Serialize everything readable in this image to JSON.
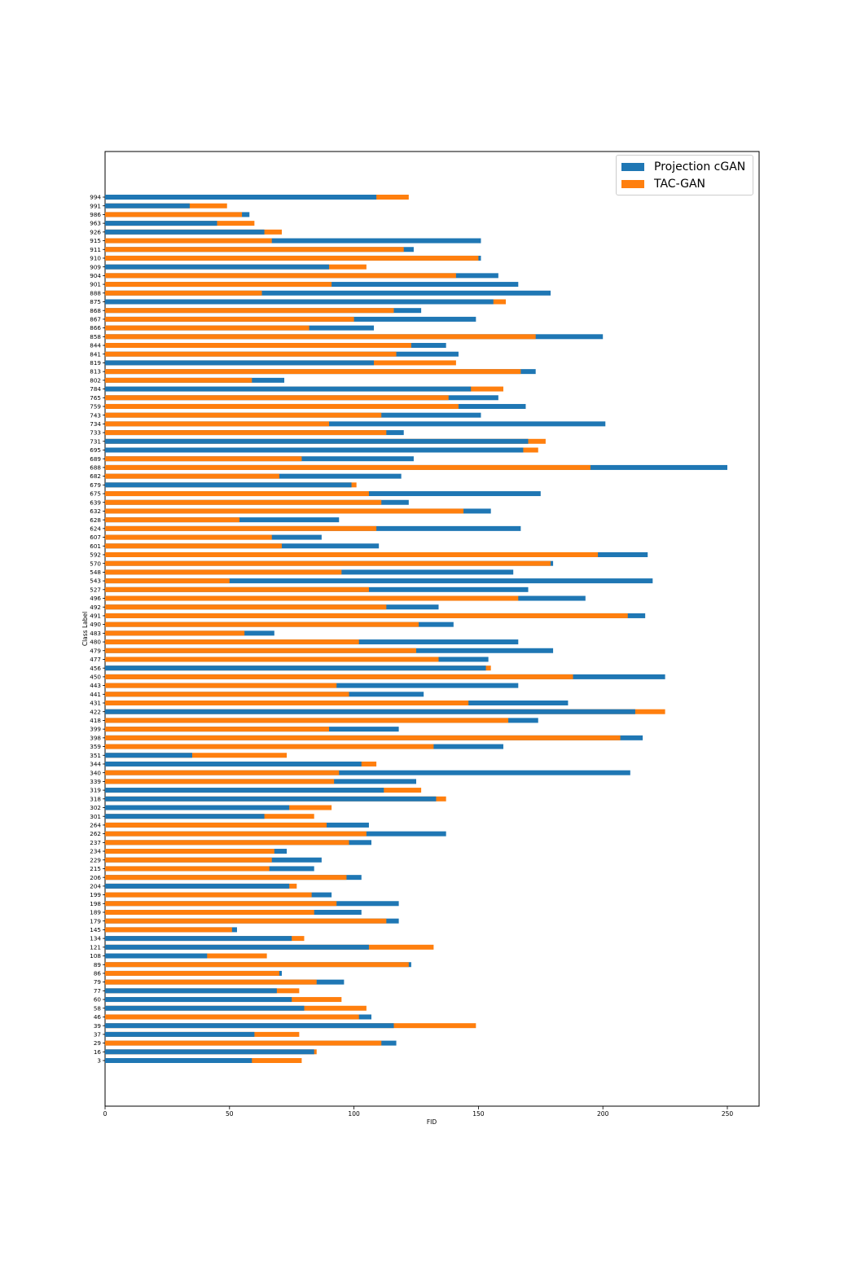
{
  "chart_data": {
    "type": "bar",
    "orientation": "horizontal",
    "bar_style": "overlapping (smaller value drawn on top)",
    "xlabel": "FID",
    "ylabel": "Class Label",
    "xlim": [
      0,
      262
    ],
    "xticks": [
      "0",
      "50",
      "100",
      "150",
      "200",
      "250"
    ],
    "grid": false,
    "legend_position": "top-right",
    "categories": [
      "3",
      "16",
      "29",
      "37",
      "39",
      "46",
      "58",
      "60",
      "77",
      "79",
      "86",
      "89",
      "108",
      "121",
      "134",
      "145",
      "179",
      "189",
      "198",
      "199",
      "204",
      "206",
      "215",
      "229",
      "234",
      "237",
      "262",
      "264",
      "301",
      "302",
      "318",
      "319",
      "339",
      "340",
      "344",
      "351",
      "359",
      "398",
      "399",
      "418",
      "422",
      "431",
      "441",
      "443",
      "450",
      "456",
      "477",
      "479",
      "480",
      "483",
      "490",
      "491",
      "492",
      "496",
      "527",
      "543",
      "548",
      "570",
      "592",
      "601",
      "607",
      "624",
      "628",
      "632",
      "639",
      "675",
      "679",
      "682",
      "688",
      "689",
      "695",
      "731",
      "733",
      "734",
      "743",
      "759",
      "765",
      "784",
      "802",
      "813",
      "819",
      "841",
      "844",
      "858",
      "866",
      "867",
      "868",
      "875",
      "888",
      "901",
      "904",
      "909",
      "910",
      "911",
      "915",
      "926",
      "963",
      "986",
      "991",
      "994"
    ],
    "series": [
      {
        "name": "Projection cGAN",
        "color": "#1f77b4",
        "values": [
          59,
          84,
          117,
          60,
          116,
          107,
          80,
          75,
          69,
          96,
          71,
          123,
          41,
          106,
          75,
          53,
          118,
          103,
          118,
          91,
          74,
          103,
          84,
          87,
          73,
          107,
          137,
          106,
          64,
          74,
          133,
          112,
          125,
          211,
          103,
          35,
          160,
          216,
          118,
          174,
          213,
          186,
          128,
          166,
          225,
          153,
          154,
          180,
          166,
          68,
          140,
          217,
          134,
          193,
          170,
          220,
          164,
          180,
          218,
          110,
          87,
          167,
          94,
          155,
          122,
          175,
          99,
          119,
          250,
          124,
          168,
          170,
          120,
          201,
          151,
          169,
          158,
          147,
          72,
          173,
          108,
          142,
          137,
          200,
          108,
          149,
          127,
          156,
          179,
          166,
          158,
          90,
          151,
          124,
          151,
          64,
          45,
          58,
          34,
          109
        ]
      },
      {
        "name": "TAC-GAN",
        "color": "#ff7f0e",
        "values": [
          79,
          85,
          111,
          78,
          149,
          102,
          105,
          95,
          78,
          85,
          70,
          122,
          65,
          132,
          80,
          51,
          113,
          84,
          93,
          83,
          77,
          97,
          66,
          67,
          68,
          98,
          105,
          89,
          84,
          91,
          137,
          127,
          92,
          94,
          109,
          73,
          132,
          207,
          90,
          162,
          225,
          146,
          98,
          93,
          188,
          155,
          134,
          125,
          102,
          56,
          126,
          210,
          113,
          166,
          106,
          50,
          95,
          179,
          198,
          71,
          67,
          109,
          54,
          144,
          111,
          106,
          101,
          70,
          195,
          79,
          174,
          177,
          113,
          90,
          111,
          142,
          138,
          160,
          59,
          167,
          141,
          117,
          123,
          173,
          82,
          100,
          116,
          161,
          63,
          91,
          141,
          105,
          150,
          120,
          67,
          71,
          60,
          55,
          49,
          122
        ]
      }
    ]
  }
}
